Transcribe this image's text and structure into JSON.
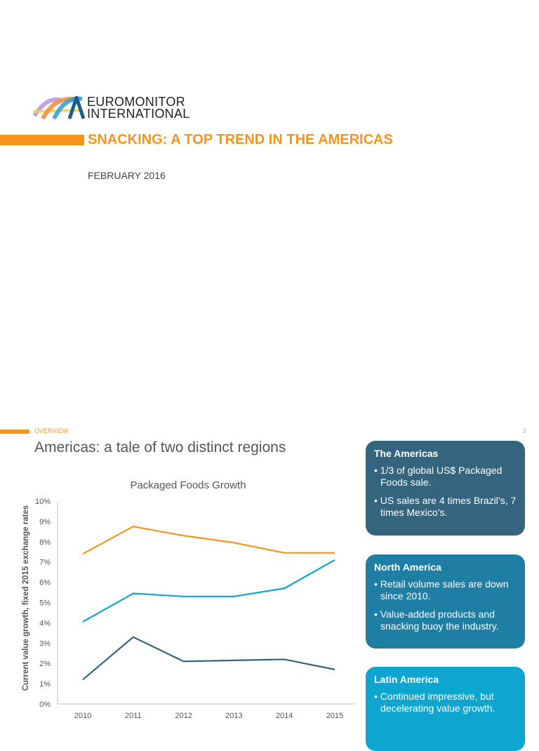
{
  "cover": {
    "logo_text": [
      "EUROMONITOR",
      "INTERNATIONAL"
    ],
    "title": "SNACKING: A TOP TREND IN THE AMERICAS",
    "date": "FEBRUARY 2016"
  },
  "slide": {
    "section": "OVERVIEW",
    "page_number": "2",
    "title": "Americas: a tale of two distinct regions",
    "boxes": [
      {
        "heading": "The Americas",
        "color": "#34647e",
        "bullets": [
          "1/3 of global US$ Packaged Foods sale.",
          "US sales are 4 times Brazil’s, 7 times Mexico’s."
        ]
      },
      {
        "heading": "North America",
        "color": "#1e7ea4",
        "bullets": [
          "Retail volume sales are down since 2010.",
          "Value-added products and snacking buoy the industry."
        ]
      },
      {
        "heading": "Latin America",
        "color": "#0ea6d0",
        "bullets": [
          "Continued impressive, but decelerating value growth."
        ]
      }
    ]
  },
  "chart_data": {
    "type": "line",
    "title": "Packaged Foods Growth",
    "ylabel": "Current value growth, fixed 2015 exchange rates",
    "xlabel": "",
    "categories": [
      "2010",
      "2011",
      "2012",
      "2013",
      "2014",
      "2015"
    ],
    "yticks": [
      "0%",
      "1%",
      "2%",
      "3%",
      "4%",
      "5%",
      "6%",
      "7%",
      "8%",
      "9%",
      "10%"
    ],
    "ylim": [
      0,
      10
    ],
    "grid": false,
    "series": [
      {
        "color": "#f7941d",
        "values": [
          7.4,
          8.75,
          8.3,
          7.95,
          7.45,
          7.45
        ]
      },
      {
        "color": "#13a3cf",
        "values": [
          4.05,
          5.45,
          5.3,
          5.3,
          5.7,
          7.1
        ]
      },
      {
        "color": "#34647e",
        "values": [
          1.2,
          3.3,
          2.1,
          2.15,
          2.2,
          1.7
        ]
      }
    ]
  }
}
